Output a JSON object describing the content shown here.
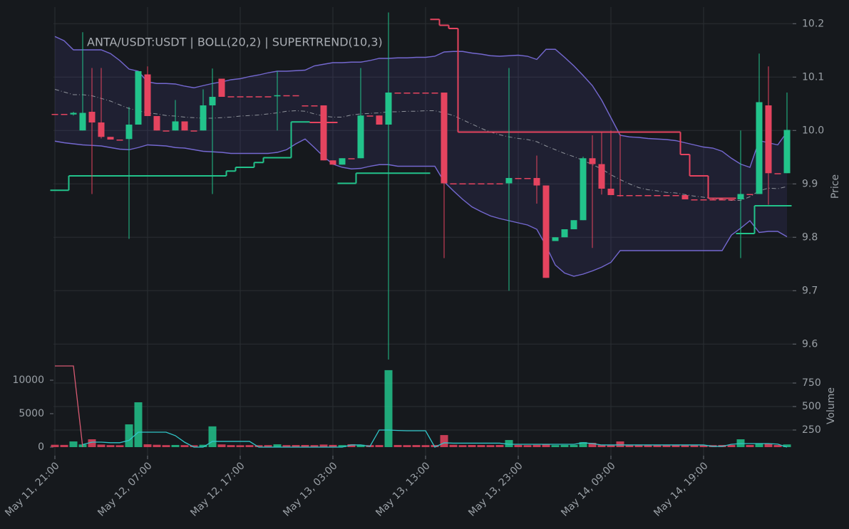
{
  "chart_data": [
    {
      "type": "candlestick",
      "title": "ANTA/USDT:USDT | BOLL(20,2) | SUPERTREND(10,3)",
      "ylabel": "Price",
      "categories": [
        "May 11, 21:00",
        null,
        null,
        null,
        null,
        null,
        null,
        null,
        null,
        null,
        "May 12, 07:00",
        null,
        null,
        null,
        null,
        null,
        null,
        null,
        null,
        null,
        "May 12, 17:00",
        null,
        null,
        null,
        null,
        null,
        null,
        null,
        null,
        null,
        "May 13, 03:00",
        null,
        null,
        null,
        null,
        null,
        null,
        null,
        null,
        null,
        "May 13, 13:00",
        null,
        null,
        null,
        null,
        null,
        null,
        null,
        null,
        null,
        "May 13, 23:00",
        null,
        null,
        null,
        null,
        null,
        null,
        null,
        null,
        null,
        "May 14, 09:00",
        null,
        null,
        null,
        null,
        null,
        null,
        null,
        null,
        null,
        "May 14, 19:00",
        null,
        null,
        null,
        null,
        null,
        null,
        null,
        null,
        null
      ],
      "open": [
        10.031,
        10.031,
        10.03,
        10.0,
        10.035,
        10.015,
        9.988,
        9.983,
        9.984,
        10.011,
        10.105,
        10.027,
        10.0,
        10.0,
        10.017,
        10.0,
        10.0,
        10.047,
        10.097,
        10.064,
        10.064,
        10.064,
        10.064,
        10.064,
        10.064,
        10.066,
        10.066,
        10.047,
        10.047,
        10.047,
        9.944,
        9.936,
        9.948,
        9.948,
        10.028,
        10.028,
        10.011,
        10.071,
        10.071,
        10.071,
        10.071,
        10.071,
        10.071,
        9.901,
        9.901,
        9.901,
        9.901,
        9.901,
        9.901,
        9.901,
        9.911,
        9.911,
        9.911,
        9.897,
        9.793,
        9.8,
        9.815,
        9.832,
        9.948,
        9.937,
        9.891,
        9.879,
        9.879,
        9.879,
        9.879,
        9.879,
        9.879,
        9.879,
        9.879,
        9.871,
        9.871,
        9.871,
        9.871,
        9.871,
        9.871,
        9.881,
        9.881,
        10.047,
        9.92,
        9.92
      ],
      "high": [
        10.031,
        10.031,
        10.035,
        10.184,
        10.117,
        10.117,
        9.988,
        9.983,
        10.044,
        10.111,
        10.12,
        10.027,
        10.0,
        10.057,
        10.017,
        10.0,
        10.077,
        10.116,
        10.097,
        10.064,
        10.064,
        10.064,
        10.064,
        10.064,
        10.111,
        10.066,
        10.066,
        10.047,
        10.047,
        10.047,
        9.944,
        9.948,
        9.948,
        10.117,
        10.028,
        10.028,
        10.221,
        10.071,
        10.071,
        10.071,
        10.071,
        10.071,
        10.071,
        9.901,
        9.901,
        9.901,
        9.901,
        9.901,
        9.901,
        10.117,
        9.911,
        9.911,
        9.953,
        9.897,
        9.8,
        9.815,
        9.832,
        9.951,
        9.991,
        9.997,
        10.0,
        9.993,
        9.879,
        9.879,
        9.879,
        9.879,
        9.879,
        9.879,
        9.879,
        9.871,
        9.871,
        9.871,
        9.871,
        9.871,
        10.0,
        9.881,
        10.144,
        10.12,
        9.92,
        10.071
      ],
      "low": [
        10.031,
        10.031,
        10.028,
        10.0,
        9.881,
        9.985,
        9.983,
        9.983,
        9.797,
        10.011,
        10.027,
        10.0,
        10.0,
        10.0,
        10.0,
        10.0,
        10.0,
        9.881,
        10.063,
        10.064,
        10.064,
        10.064,
        10.064,
        10.064,
        10.0,
        10.066,
        10.066,
        10.047,
        10.047,
        9.944,
        9.936,
        9.936,
        9.948,
        9.948,
        10.028,
        10.011,
        9.571,
        10.071,
        10.071,
        10.071,
        10.071,
        10.071,
        9.761,
        9.901,
        9.901,
        9.901,
        9.901,
        9.901,
        9.901,
        9.7,
        9.911,
        9.911,
        9.863,
        9.724,
        9.793,
        9.8,
        9.815,
        9.832,
        9.78,
        9.88,
        9.879,
        9.876,
        9.879,
        9.879,
        9.879,
        9.879,
        9.879,
        9.879,
        9.871,
        9.871,
        9.871,
        9.871,
        9.871,
        9.871,
        9.761,
        9.881,
        9.881,
        9.861,
        9.92,
        9.92
      ],
      "close": [
        10.031,
        10.031,
        10.033,
        10.033,
        10.015,
        9.988,
        9.983,
        9.983,
        10.011,
        10.111,
        10.027,
        10.0,
        10.0,
        10.017,
        10.0,
        10.0,
        10.047,
        10.063,
        10.063,
        10.064,
        10.064,
        10.064,
        10.064,
        10.064,
        10.066,
        10.066,
        10.066,
        10.047,
        10.047,
        9.944,
        9.936,
        9.948,
        9.948,
        10.028,
        10.028,
        10.011,
        10.071,
        10.071,
        10.071,
        10.071,
        10.071,
        10.071,
        9.901,
        9.901,
        9.901,
        9.901,
        9.901,
        9.901,
        9.901,
        9.911,
        9.911,
        9.911,
        9.897,
        9.724,
        9.8,
        9.815,
        9.832,
        9.948,
        9.937,
        9.891,
        9.879,
        9.879,
        9.879,
        9.879,
        9.879,
        9.879,
        9.879,
        9.879,
        9.871,
        9.871,
        9.871,
        9.871,
        9.871,
        9.871,
        9.881,
        9.881,
        10.053,
        9.92,
        9.92,
        10.001
      ],
      "up_color": "#22c38b",
      "down_color": "#e5445f",
      "ylim": [
        9.591,
        10.231
      ],
      "yticks": [
        9.6,
        9.7,
        9.8,
        9.9,
        {
          "value": 10,
          "label": "10.0"
        },
        10.1,
        10.2
      ],
      "grid": true,
      "band_fill": "#5b50b8",
      "overlays": [
        {
          "color": "#7468d0",
          "values": [
            10.176,
            10.168,
            10.151,
            10.151,
            10.151,
            10.151,
            10.144,
            10.131,
            10.115,
            10.111,
            10.091,
            10.088,
            10.088,
            10.087,
            10.083,
            10.08,
            10.084,
            10.088,
            10.091,
            10.095,
            10.097,
            10.101,
            10.104,
            10.108,
            10.111,
            10.111,
            10.112,
            10.113,
            10.121,
            10.124,
            10.127,
            10.127,
            10.128,
            10.128,
            10.131,
            10.135,
            10.135,
            10.136,
            10.136,
            10.137,
            10.137,
            10.139,
            10.147,
            10.148,
            10.148,
            10.145,
            10.143,
            10.14,
            10.139,
            10.14,
            10.141,
            10.139,
            10.133,
            10.152,
            10.152,
            10.137,
            10.121,
            10.103,
            10.084,
            10.057,
            10.024,
            9.991,
            9.988,
            9.987,
            9.985,
            9.984,
            9.983,
            9.981,
            9.977,
            9.973,
            9.969,
            9.967,
            9.961,
            9.948,
            9.937,
            9.931,
            9.981,
            9.977,
            9.973,
            9.997
          ]
        },
        {
          "color": "#8d9199",
          "style": "dashdot",
          "values": [
            10.077,
            10.072,
            10.067,
            10.067,
            10.065,
            10.06,
            10.055,
            10.048,
            10.041,
            10.037,
            10.033,
            10.031,
            10.028,
            10.027,
            10.025,
            10.024,
            10.023,
            10.023,
            10.024,
            10.025,
            10.027,
            10.028,
            10.029,
            10.031,
            10.033,
            10.036,
            10.037,
            10.036,
            10.031,
            10.027,
            10.025,
            10.025,
            10.029,
            10.031,
            10.032,
            10.033,
            10.035,
            10.035,
            10.036,
            10.036,
            10.037,
            10.037,
            10.033,
            10.028,
            10.02,
            10.012,
            10.004,
            9.997,
            9.992,
            9.988,
            9.985,
            9.983,
            9.979,
            9.971,
            9.964,
            9.957,
            9.951,
            9.944,
            9.936,
            9.928,
            9.917,
            9.908,
            9.9,
            9.893,
            9.889,
            9.887,
            9.884,
            9.883,
            9.88,
            9.877,
            9.875,
            9.872,
            9.871,
            9.869,
            9.869,
            9.876,
            9.887,
            9.892,
            9.891,
            9.895
          ]
        },
        {
          "color": "#7468d0",
          "values": [
            9.98,
            9.977,
            9.975,
            9.973,
            9.972,
            9.971,
            9.968,
            9.965,
            9.964,
            9.968,
            9.973,
            9.972,
            9.971,
            9.968,
            9.967,
            9.964,
            9.961,
            9.96,
            9.959,
            9.957,
            9.957,
            9.957,
            9.957,
            9.957,
            9.959,
            9.964,
            9.975,
            9.984,
            9.968,
            9.951,
            9.937,
            9.931,
            9.928,
            9.929,
            9.933,
            9.936,
            9.936,
            9.933,
            9.933,
            9.933,
            9.933,
            9.933,
            9.904,
            9.887,
            9.871,
            9.857,
            9.848,
            9.84,
            9.835,
            9.831,
            9.827,
            9.823,
            9.815,
            9.784,
            9.748,
            9.733,
            9.727,
            9.731,
            9.737,
            9.744,
            9.753,
            9.775,
            9.775,
            9.775,
            9.775,
            9.775,
            9.775,
            9.775,
            9.775,
            9.775,
            9.775,
            9.775,
            9.775,
            9.804,
            9.817,
            9.831,
            9.809,
            9.811,
            9.811,
            9.801
          ]
        },
        {
          "color": "#22c38b",
          "step": true,
          "values": [
            9.888,
            9.888,
            9.915,
            9.915,
            9.915,
            9.915,
            9.915,
            9.915,
            9.915,
            9.915,
            9.915,
            9.915,
            9.915,
            9.915,
            9.915,
            9.915,
            9.915,
            9.915,
            9.915,
            9.924,
            9.931,
            9.931,
            9.94,
            9.949,
            9.949,
            9.949,
            10.016,
            10.016,
            null,
            null,
            null,
            9.901,
            9.901,
            9.92,
            9.92,
            9.92,
            9.92,
            9.92,
            9.92,
            9.92,
            9.92,
            null,
            null,
            null,
            null,
            null,
            null,
            null,
            null,
            null,
            null,
            null,
            null,
            null,
            null,
            null,
            null,
            null,
            null,
            null,
            null,
            null,
            null,
            null,
            null,
            null,
            null,
            null,
            null,
            null,
            null,
            null,
            null,
            null,
            9.807,
            9.807,
            9.859,
            9.859,
            9.859,
            9.859
          ]
        },
        {
          "color": "#e5445f",
          "step": true,
          "values": [
            null,
            null,
            null,
            null,
            null,
            null,
            null,
            null,
            null,
            null,
            null,
            null,
            null,
            null,
            null,
            null,
            null,
            null,
            null,
            null,
            null,
            null,
            null,
            null,
            null,
            null,
            null,
            null,
            10.015,
            10.015,
            10.015,
            null,
            null,
            null,
            null,
            null,
            null,
            null,
            null,
            null,
            null,
            10.208,
            10.197,
            10.191,
            9.997,
            9.997,
            9.997,
            9.997,
            9.997,
            9.997,
            9.997,
            9.997,
            9.997,
            9.997,
            9.997,
            9.997,
            9.997,
            9.997,
            9.997,
            9.997,
            9.997,
            9.997,
            9.997,
            9.997,
            9.997,
            9.997,
            9.997,
            9.997,
            9.955,
            9.915,
            9.915,
            9.873,
            9.873,
            9.873,
            null,
            null,
            null,
            null,
            null,
            null
          ]
        }
      ]
    },
    {
      "type": "bar",
      "ylabel": "Volume",
      "values": [
        350,
        330,
        850,
        400,
        1170,
        380,
        300,
        280,
        3400,
        6700,
        420,
        350,
        300,
        320,
        300,
        280,
        350,
        3100,
        400,
        300,
        280,
        300,
        290,
        300,
        420,
        300,
        310,
        320,
        300,
        380,
        330,
        300,
        430,
        350,
        300,
        310,
        11500,
        320,
        300,
        310,
        300,
        320,
        1800,
        350,
        300,
        320,
        310,
        300,
        320,
        1060,
        330,
        300,
        340,
        380,
        300,
        320,
        330,
        750,
        640,
        350,
        320,
        850,
        300,
        320,
        310,
        300,
        320,
        310,
        300,
        320,
        310,
        300,
        320,
        330,
        1170,
        320,
        530,
        530,
        320,
        400
      ],
      "ylim": [
        -1277,
        14149
      ],
      "yticks": [
        0,
        5000,
        10000
      ],
      "y2lim": [
        -23,
        1076
      ],
      "y2ticks": [
        250,
        500,
        750
      ],
      "grid": true,
      "series": [
        {
          "color": "#d65a72",
          "axis": "y2",
          "values": [
            932,
            932,
            932,
            68,
            null,
            null,
            null,
            null,
            null,
            null,
            null,
            null,
            null,
            null,
            null,
            null,
            null,
            null,
            null,
            null,
            null,
            null,
            null,
            null,
            null,
            null,
            null,
            null,
            null,
            null,
            null,
            null,
            null,
            null,
            null,
            null,
            null,
            null,
            null,
            null,
            null,
            null,
            null,
            null,
            null,
            null,
            null,
            null,
            null,
            null,
            null,
            null,
            null,
            null,
            null,
            null,
            null,
            null,
            null,
            null,
            null,
            null,
            null,
            null,
            null,
            null,
            null,
            null,
            null,
            null,
            null,
            null,
            null,
            null,
            null,
            null,
            null,
            null,
            null,
            null
          ]
        },
        {
          "color": "#31c6c9",
          "axis": "y2",
          "values": [
            null,
            null,
            null,
            95,
            121,
            121,
            115,
            115,
            140,
            227,
            227,
            227,
            227,
            190,
            120,
            68,
            68,
            129,
            129,
            129,
            129,
            129,
            68,
            68,
            68,
            68,
            68,
            68,
            68,
            68,
            68,
            68,
            91,
            91,
            76,
            250,
            250,
            245,
            242,
            242,
            242,
            68,
            114,
            110,
            110,
            110,
            110,
            110,
            110,
            98,
            98,
            98,
            98,
            98,
            98,
            98,
            98,
            114,
            106,
            91,
            91,
            91,
            91,
            91,
            91,
            91,
            91,
            91,
            91,
            91,
            91,
            76,
            76,
            98,
            106,
            106,
            106,
            106,
            100,
            68
          ]
        }
      ]
    }
  ]
}
